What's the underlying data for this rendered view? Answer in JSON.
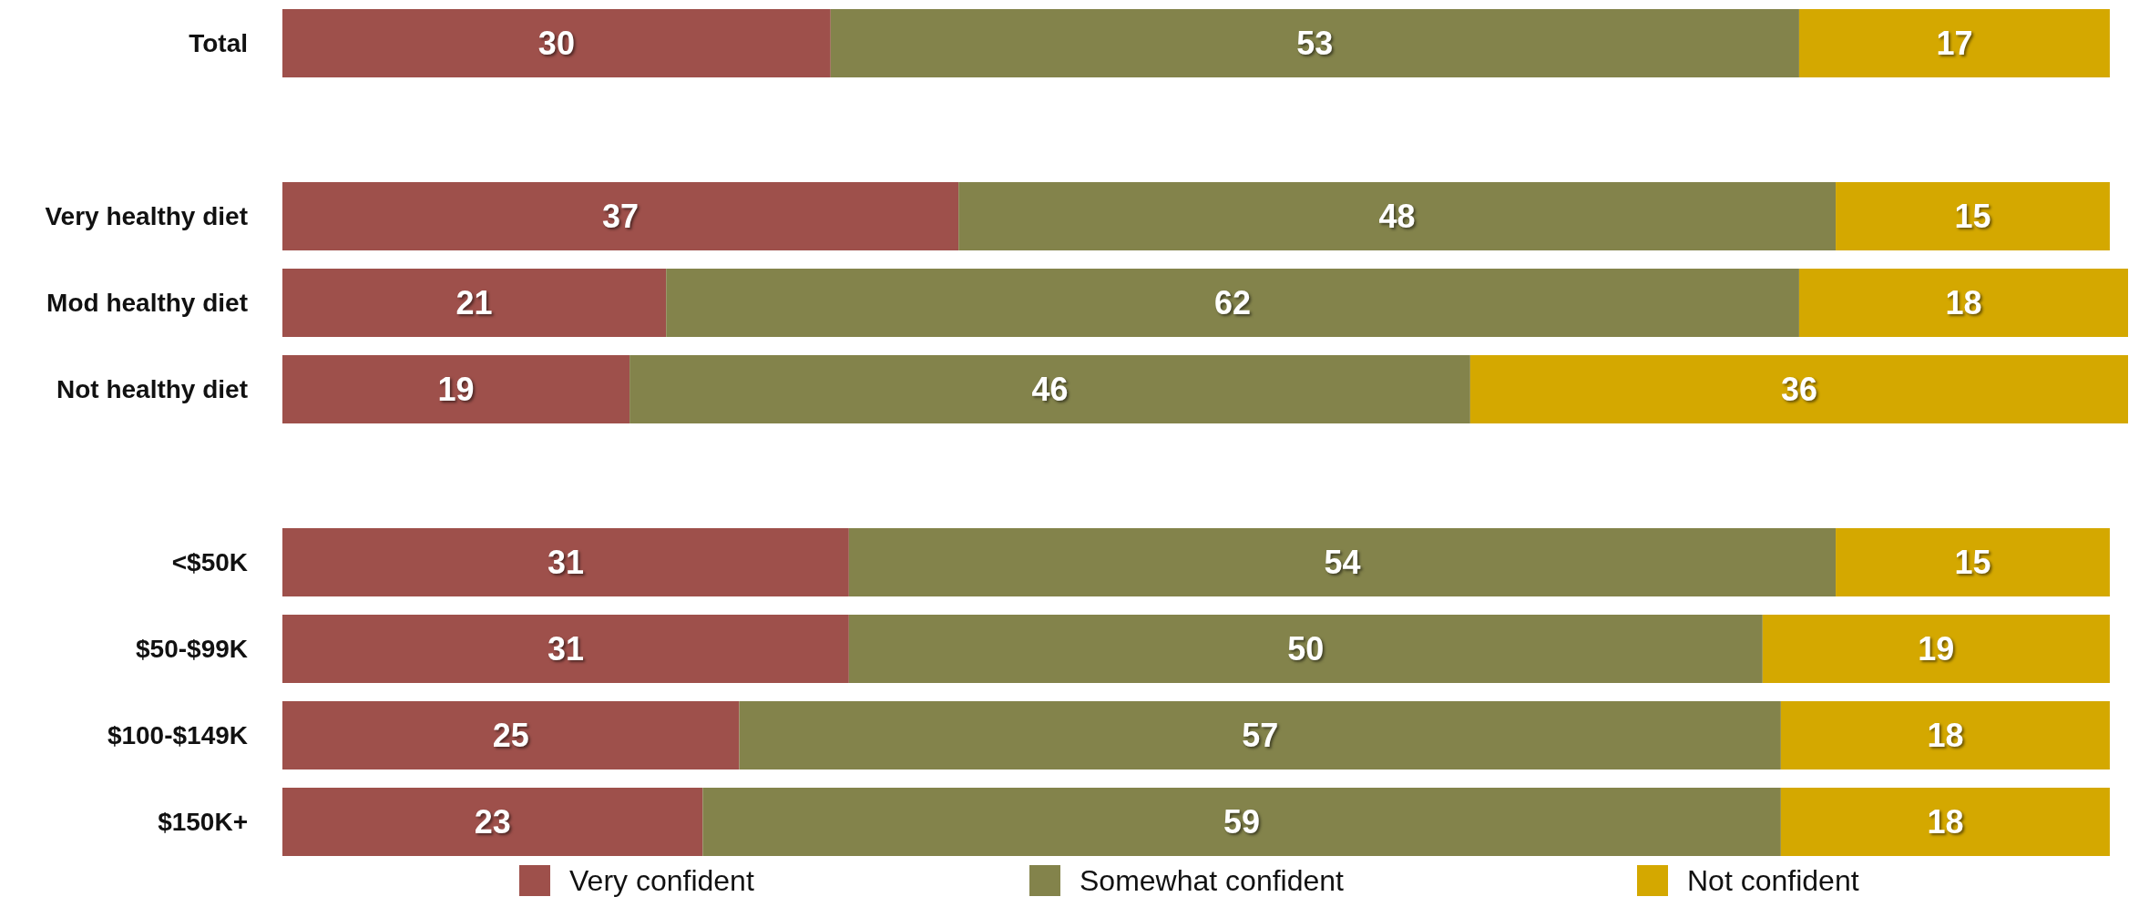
{
  "chart_data": {
    "type": "bar",
    "orientation": "horizontal",
    "stacked": true,
    "data_labels": true,
    "legend": "bottom",
    "tick_labels": "y",
    "categories": [
      "Total",
      null,
      "Very healthy diet",
      "Mod healthy diet",
      "Not healthy diet",
      null,
      "<$50K",
      "$50-$99K",
      "$100-$149K",
      "$150K+"
    ],
    "series": [
      {
        "name": "Very confident",
        "color": "#9e504b",
        "values": [
          30,
          null,
          37,
          21,
          19,
          null,
          31,
          31,
          25,
          23
        ]
      },
      {
        "name": "Somewhat confident",
        "color": "#83834b",
        "values": [
          53,
          null,
          48,
          62,
          46,
          null,
          54,
          50,
          57,
          59
        ]
      },
      {
        "name": "Not confident",
        "color": "#d4a800",
        "values": [
          17,
          null,
          15,
          18,
          36,
          null,
          15,
          19,
          18,
          18
        ]
      }
    ]
  }
}
